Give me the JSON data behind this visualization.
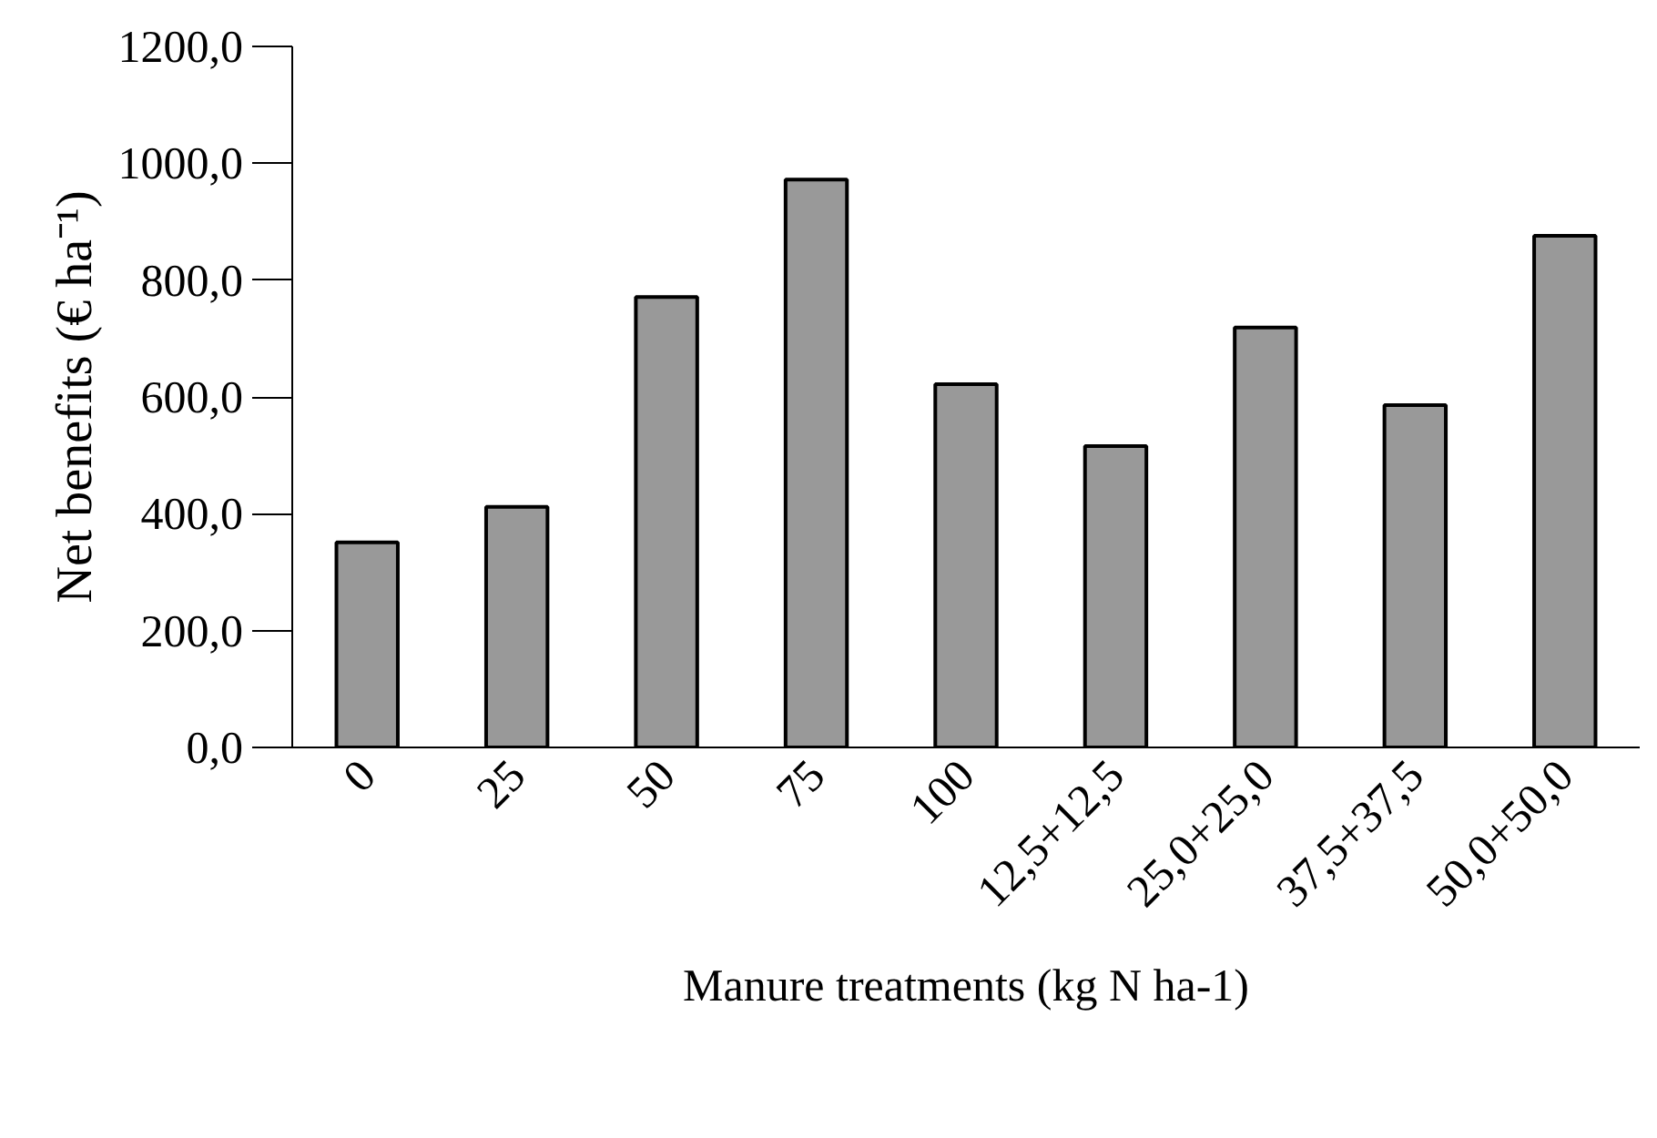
{
  "chart_data": {
    "type": "bar",
    "xlabel": "Manure treatments (kg N ha-1)",
    "ylabel": "Net benefits (€ ha⁻¹)",
    "categories": [
      "0",
      "25",
      "50",
      "75",
      "100",
      "12,5+12,5",
      "25,0+25,0",
      "37,5+37,5",
      "50,0+50,0"
    ],
    "values": [
      351,
      412,
      771,
      972,
      622,
      516,
      719,
      586,
      876
    ],
    "color": "#999999",
    "ylim": [
      0,
      1200
    ],
    "yticks": [
      {
        "value": 0,
        "label": "0,0"
      },
      {
        "value": 200,
        "label": "200,0"
      },
      {
        "value": 400,
        "label": "400,0"
      },
      {
        "value": 600,
        "label": "600,0"
      },
      {
        "value": 800,
        "label": "800,0"
      },
      {
        "value": 1000,
        "label": "1000,0"
      },
      {
        "value": 1200,
        "label": "1200,0"
      }
    ],
    "grid": false
  }
}
